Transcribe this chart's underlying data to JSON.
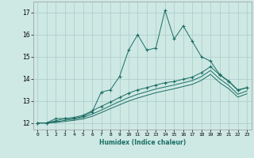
{
  "xlabel": "Humidex (Indice chaleur)",
  "ylabel": "",
  "bg_color": "#cee8e4",
  "grid_color": "#aaccc8",
  "line_color": "#1a6e64",
  "xlim": [
    -0.5,
    23.5
  ],
  "ylim": [
    11.7,
    17.5
  ],
  "xticks": [
    0,
    1,
    2,
    3,
    4,
    5,
    6,
    7,
    8,
    9,
    10,
    11,
    12,
    13,
    14,
    15,
    16,
    17,
    18,
    19,
    20,
    21,
    22,
    23
  ],
  "yticks": [
    12,
    13,
    14,
    15,
    16,
    17
  ],
  "series1_x": [
    0,
    1,
    2,
    3,
    4,
    5,
    6,
    7,
    8,
    9,
    10,
    11,
    12,
    13,
    14,
    15,
    16,
    17,
    18,
    19,
    20,
    21,
    22,
    23
  ],
  "series1_y": [
    12.0,
    12.0,
    12.2,
    12.2,
    12.2,
    12.3,
    12.5,
    13.4,
    13.5,
    14.1,
    15.3,
    16.0,
    15.3,
    15.4,
    17.1,
    15.8,
    16.4,
    15.7,
    15.0,
    14.8,
    14.2,
    13.9,
    13.5,
    13.6
  ],
  "series2_x": [
    0,
    1,
    2,
    3,
    4,
    5,
    6,
    7,
    8,
    9,
    10,
    11,
    12,
    13,
    14,
    15,
    16,
    17,
    18,
    19,
    20,
    21,
    22,
    23
  ],
  "series2_y": [
    12.0,
    12.0,
    12.1,
    12.2,
    12.25,
    12.35,
    12.55,
    12.75,
    12.95,
    13.15,
    13.35,
    13.5,
    13.6,
    13.72,
    13.82,
    13.88,
    13.98,
    14.08,
    14.28,
    14.55,
    14.18,
    13.88,
    13.48,
    13.6
  ],
  "series3_x": [
    0,
    1,
    2,
    3,
    4,
    5,
    6,
    7,
    8,
    9,
    10,
    11,
    12,
    13,
    14,
    15,
    16,
    17,
    18,
    19,
    20,
    21,
    22,
    23
  ],
  "series3_y": [
    12.0,
    12.0,
    12.05,
    12.12,
    12.18,
    12.25,
    12.4,
    12.58,
    12.78,
    12.97,
    13.15,
    13.3,
    13.42,
    13.54,
    13.63,
    13.72,
    13.82,
    13.92,
    14.1,
    14.38,
    14.0,
    13.7,
    13.3,
    13.45
  ],
  "series4_x": [
    0,
    1,
    2,
    3,
    4,
    5,
    6,
    7,
    8,
    9,
    10,
    11,
    12,
    13,
    14,
    15,
    16,
    17,
    18,
    19,
    20,
    21,
    22,
    23
  ],
  "series4_y": [
    12.0,
    12.0,
    12.02,
    12.07,
    12.12,
    12.18,
    12.3,
    12.47,
    12.65,
    12.82,
    12.99,
    13.13,
    13.25,
    13.37,
    13.46,
    13.55,
    13.65,
    13.75,
    13.93,
    14.2,
    13.83,
    13.55,
    13.17,
    13.32
  ]
}
